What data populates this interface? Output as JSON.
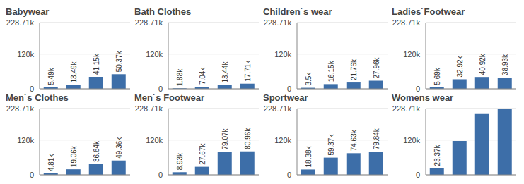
{
  "chart_data": [
    {
      "type": "bar",
      "title": "Babywear",
      "categories": [
        null,
        null,
        null,
        null
      ],
      "values": [
        5490,
        13490,
        41150,
        50370
      ],
      "value_labels": [
        "5.49k",
        "13.49k",
        "41.15k",
        "50.37k"
      ],
      "color": "#3d6ea8",
      "ylim": [
        0,
        228710
      ],
      "yticks": [
        0,
        {
          "value": 120000,
          "label": "120k"
        },
        {
          "value": 228710,
          "label": "228.71k"
        }
      ],
      "grid": true,
      "data_labels": true,
      "tick_labels": "y"
    },
    {
      "type": "bar",
      "title": "Bath Clothes",
      "categories": [
        null,
        null,
        null,
        null
      ],
      "values": [
        1880,
        7040,
        13440,
        17710
      ],
      "value_labels": [
        "1.88k",
        "7.04k",
        "13.44k",
        "17.71k"
      ],
      "color": "#3d6ea8",
      "ylim": [
        0,
        228710
      ],
      "yticks": [
        0,
        {
          "value": 120000,
          "label": "120k"
        },
        {
          "value": 228710,
          "label": "228.71k"
        }
      ],
      "grid": true,
      "data_labels": true,
      "tick_labels": "y"
    },
    {
      "type": "bar",
      "title": "Children´s wear",
      "categories": [
        null,
        null,
        null,
        null
      ],
      "values": [
        3500,
        16150,
        21760,
        27960
      ],
      "value_labels": [
        "3.5k",
        "16.15k",
        "21.76k",
        "27.96k"
      ],
      "color": "#3d6ea8",
      "ylim": [
        0,
        228710
      ],
      "yticks": [
        0,
        {
          "value": 120000,
          "label": "120k"
        },
        {
          "value": 228710,
          "label": "228.71k"
        }
      ],
      "grid": true,
      "data_labels": true,
      "tick_labels": "y"
    },
    {
      "type": "bar",
      "title": "Ladies´Footwear",
      "categories": [
        null,
        null,
        null,
        null
      ],
      "values": [
        5690,
        32920,
        40920,
        38930
      ],
      "value_labels": [
        "5.69k",
        "32.92k",
        "40.92k",
        "38.93k"
      ],
      "color": "#3d6ea8",
      "ylim": [
        0,
        228710
      ],
      "yticks": [
        0,
        {
          "value": 120000,
          "label": "120k"
        },
        {
          "value": 228710,
          "label": "228.71k"
        }
      ],
      "grid": true,
      "data_labels": true,
      "tick_labels": "y"
    },
    {
      "type": "bar",
      "title": "Men´s Clothes",
      "categories": [
        null,
        null,
        null,
        null
      ],
      "values": [
        4810,
        19060,
        36640,
        49360
      ],
      "value_labels": [
        "4.81k",
        "19.06k",
        "36.64k",
        "49.36k"
      ],
      "color": "#3d6ea8",
      "ylim": [
        0,
        228710
      ],
      "yticks": [
        0,
        {
          "value": 120000,
          "label": "120k"
        },
        {
          "value": 228710,
          "label": "228.71k"
        }
      ],
      "grid": true,
      "data_labels": true,
      "tick_labels": "y"
    },
    {
      "type": "bar",
      "title": "Men´s Footwear",
      "categories": [
        null,
        null,
        null,
        null
      ],
      "values": [
        8930,
        27670,
        79070,
        80960
      ],
      "value_labels": [
        "8.93k",
        "27.67k",
        "79.07k",
        "80.96k"
      ],
      "color": "#3d6ea8",
      "ylim": [
        0,
        228710
      ],
      "yticks": [
        0,
        {
          "value": 120000,
          "label": "120k"
        },
        {
          "value": 228710,
          "label": "228.71k"
        }
      ],
      "grid": true,
      "data_labels": true,
      "tick_labels": "y"
    },
    {
      "type": "bar",
      "title": "Sportwear",
      "categories": [
        null,
        null,
        null,
        null
      ],
      "values": [
        18380,
        59370,
        74630,
        79840
      ],
      "value_labels": [
        "18.38k",
        "59.37k",
        "74.63k",
        "79.84k"
      ],
      "color": "#3d6ea8",
      "ylim": [
        0,
        228710
      ],
      "yticks": [
        0,
        {
          "value": 120000,
          "label": "120k"
        },
        {
          "value": 228710,
          "label": "228.71k"
        }
      ],
      "grid": true,
      "data_labels": true,
      "tick_labels": "y"
    },
    {
      "type": "bar",
      "title": "Womens wear",
      "categories": [
        null,
        null,
        null,
        null
      ],
      "values": [
        23370,
        117000,
        212000,
        228710
      ],
      "value_labels": [
        "23.37k",
        null,
        null,
        null
      ],
      "color": "#3d6ea8",
      "ylim": [
        0,
        228710
      ],
      "yticks": [
        0,
        {
          "value": 120000,
          "label": "120k"
        },
        {
          "value": 228710,
          "label": "228.71k"
        }
      ],
      "grid": true,
      "data_labels": true,
      "tick_labels": "y"
    }
  ]
}
